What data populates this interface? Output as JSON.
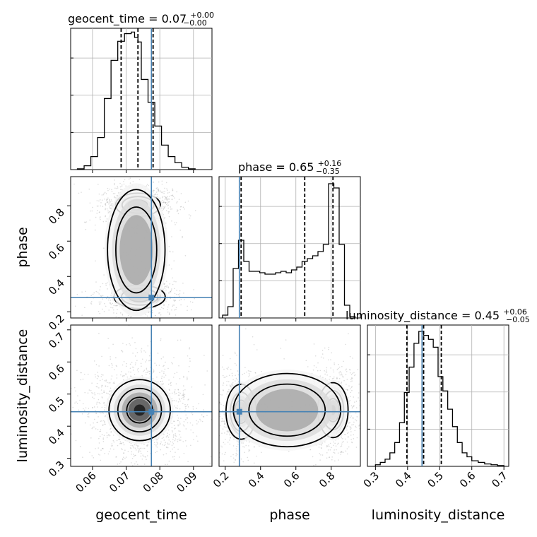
{
  "chart_data": {
    "type": "corner",
    "parameters": [
      "geocent_time",
      "phase",
      "luminosity_distance"
    ],
    "truth_color": "#4682b4",
    "truths": {
      "geocent_time": 0.0775,
      "phase": 0.28,
      "luminosity_distance": 0.445
    },
    "quantiles": {
      "geocent_time": [
        0.0685,
        0.0735,
        0.078
      ],
      "phase": [
        0.29,
        0.65,
        0.81
      ],
      "luminosity_distance": [
        0.398,
        0.45,
        0.505
      ]
    },
    "titles": [
      {
        "param": "geocent_time",
        "label": "geocent_time = 0.07",
        "plus": "+0.00",
        "minus": "−0.00"
      },
      {
        "param": "phase",
        "label": "phase = 0.65",
        "plus": "+0.16",
        "minus": "−0.35"
      },
      {
        "param": "luminosity_distance",
        "label": "luminosity_distance = 0.45",
        "plus": "+0.06",
        "minus": "−0.05"
      }
    ],
    "axes": {
      "geocent_time": {
        "range": [
          0.0535,
          0.0955
        ],
        "ticks": [
          0.06,
          0.07,
          0.08,
          0.09
        ],
        "tick_labels": [
          "0.06",
          "0.07",
          "0.08",
          "0.09"
        ]
      },
      "phase": {
        "range": [
          0.165,
          0.965
        ],
        "ticks": [
          0.2,
          0.4,
          0.6,
          0.8
        ],
        "tick_labels": [
          "0.2",
          "0.4",
          "0.6",
          "0.8"
        ]
      },
      "luminosity_distance": {
        "range": [
          0.275,
          0.715
        ],
        "ticks": [
          0.3,
          0.4,
          0.5,
          0.6,
          0.7
        ],
        "tick_labels": [
          "0.3",
          "0.4",
          "0.5",
          "0.6",
          "0.7"
        ]
      }
    },
    "histograms": {
      "geocent_time": {
        "edges": [
          0.0555,
          0.0575,
          0.0595,
          0.0615,
          0.0635,
          0.0655,
          0.0675,
          0.0695,
          0.0715,
          0.0725,
          0.0735,
          0.0745,
          0.0765,
          0.0785,
          0.0805,
          0.0825,
          0.0845,
          0.0865,
          0.0885,
          0.0905
        ],
        "counts": [
          1,
          5,
          17,
          42,
          93,
          143,
          168,
          178,
          180,
          173,
          167,
          118,
          88,
          57,
          32,
          17,
          9,
          3,
          1
        ],
        "ymax": 185
      },
      "phase": {
        "edges": [
          0.185,
          0.215,
          0.245,
          0.275,
          0.305,
          0.335,
          0.365,
          0.395,
          0.425,
          0.455,
          0.485,
          0.515,
          0.545,
          0.575,
          0.605,
          0.635,
          0.665,
          0.695,
          0.725,
          0.755,
          0.785,
          0.815,
          0.845,
          0.875,
          0.905,
          0.935
        ],
        "counts": [
          2,
          8,
          35,
          55,
          40,
          33,
          33,
          32,
          31,
          31,
          32,
          33,
          32,
          34,
          36,
          40,
          42,
          44,
          47,
          52,
          95,
          92,
          52,
          9,
          1
        ],
        "ymax": 100
      },
      "luminosity_distance": {
        "edges": [
          0.3,
          0.315,
          0.33,
          0.345,
          0.36,
          0.375,
          0.39,
          0.405,
          0.42,
          0.435,
          0.45,
          0.465,
          0.48,
          0.495,
          0.51,
          0.525,
          0.54,
          0.555,
          0.57,
          0.585,
          0.6,
          0.62,
          0.64,
          0.66,
          0.68,
          0.7
        ],
        "counts": [
          2,
          5,
          9,
          17,
          30,
          55,
          93,
          125,
          155,
          170,
          165,
          160,
          150,
          113,
          95,
          72,
          50,
          30,
          17,
          12,
          7,
          5,
          3,
          2,
          1
        ],
        "ymax": 178
      }
    },
    "density_modes": {
      "geocent_time_phase": [
        {
          "x": 0.0735,
          "y": 0.805,
          "sx": 0.0035,
          "sy": 0.035,
          "w": 1.0
        },
        {
          "x": 0.074,
          "y": 0.285,
          "sx": 0.004,
          "sy": 0.035,
          "w": 0.55
        },
        {
          "x": 0.073,
          "y": 0.55,
          "sx": 0.0045,
          "sy": 0.18,
          "w": 0.28
        }
      ],
      "geocent_time_luminosity_distance": [
        {
          "x": 0.074,
          "y": 0.45,
          "sx": 0.0048,
          "sy": 0.05,
          "w": 1.0
        }
      ],
      "phase_luminosity_distance": [
        {
          "x": 0.81,
          "y": 0.45,
          "sx": 0.045,
          "sy": 0.045,
          "w": 1.0
        },
        {
          "x": 0.29,
          "y": 0.445,
          "sx": 0.045,
          "sy": 0.045,
          "w": 0.6
        },
        {
          "x": 0.55,
          "y": 0.45,
          "sx": 0.16,
          "sy": 0.06,
          "w": 0.25
        }
      ]
    },
    "contour_levels": [
      {
        "rx": 0.8,
        "ry": 0.8,
        "dx": 0.0,
        "dy": 0.0
      },
      {
        "rx": 1.35,
        "ry": 1.35,
        "dx": 0.0,
        "dy": 0.0
      },
      {
        "rx": 1.9,
        "ry": 1.9,
        "dx": 0.0,
        "dy": 0.0
      }
    ],
    "grid": true,
    "legend": "none"
  }
}
